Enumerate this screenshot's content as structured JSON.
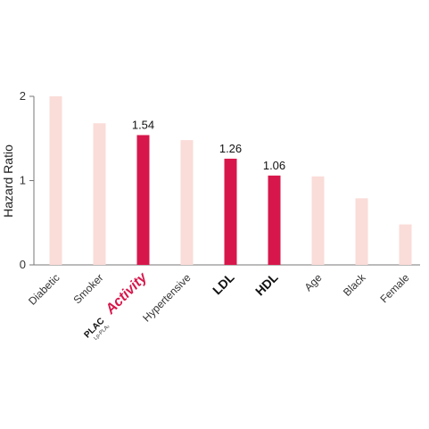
{
  "chart_data": {
    "type": "bar",
    "y_label": "Hazard Ratio",
    "categories": [
      "Diabetic",
      "Smoker",
      "Activity",
      "Hypertensive",
      "LDL",
      "HDL",
      "Age",
      "Black",
      "Female"
    ],
    "logo": {
      "mark": "PLAC",
      "sub": "Lp-PLA₂"
    },
    "values": [
      2.0,
      1.68,
      1.54,
      1.48,
      1.26,
      1.06,
      1.05,
      0.79,
      0.48
    ],
    "value_labels": [
      null,
      null,
      "1.54",
      null,
      "1.26",
      "1.06",
      null,
      null,
      null
    ],
    "colors": [
      "#fadcd8",
      "#fadcd8",
      "#d7174b",
      "#fadcd8",
      "#d7174b",
      "#d7174b",
      "#fadcd8",
      "#fadcd8",
      "#fadcd8"
    ],
    "highlight_color": "#d7174b",
    "ylim": [
      0,
      2
    ],
    "yticks": [
      0,
      1,
      2
    ],
    "grid": false
  }
}
